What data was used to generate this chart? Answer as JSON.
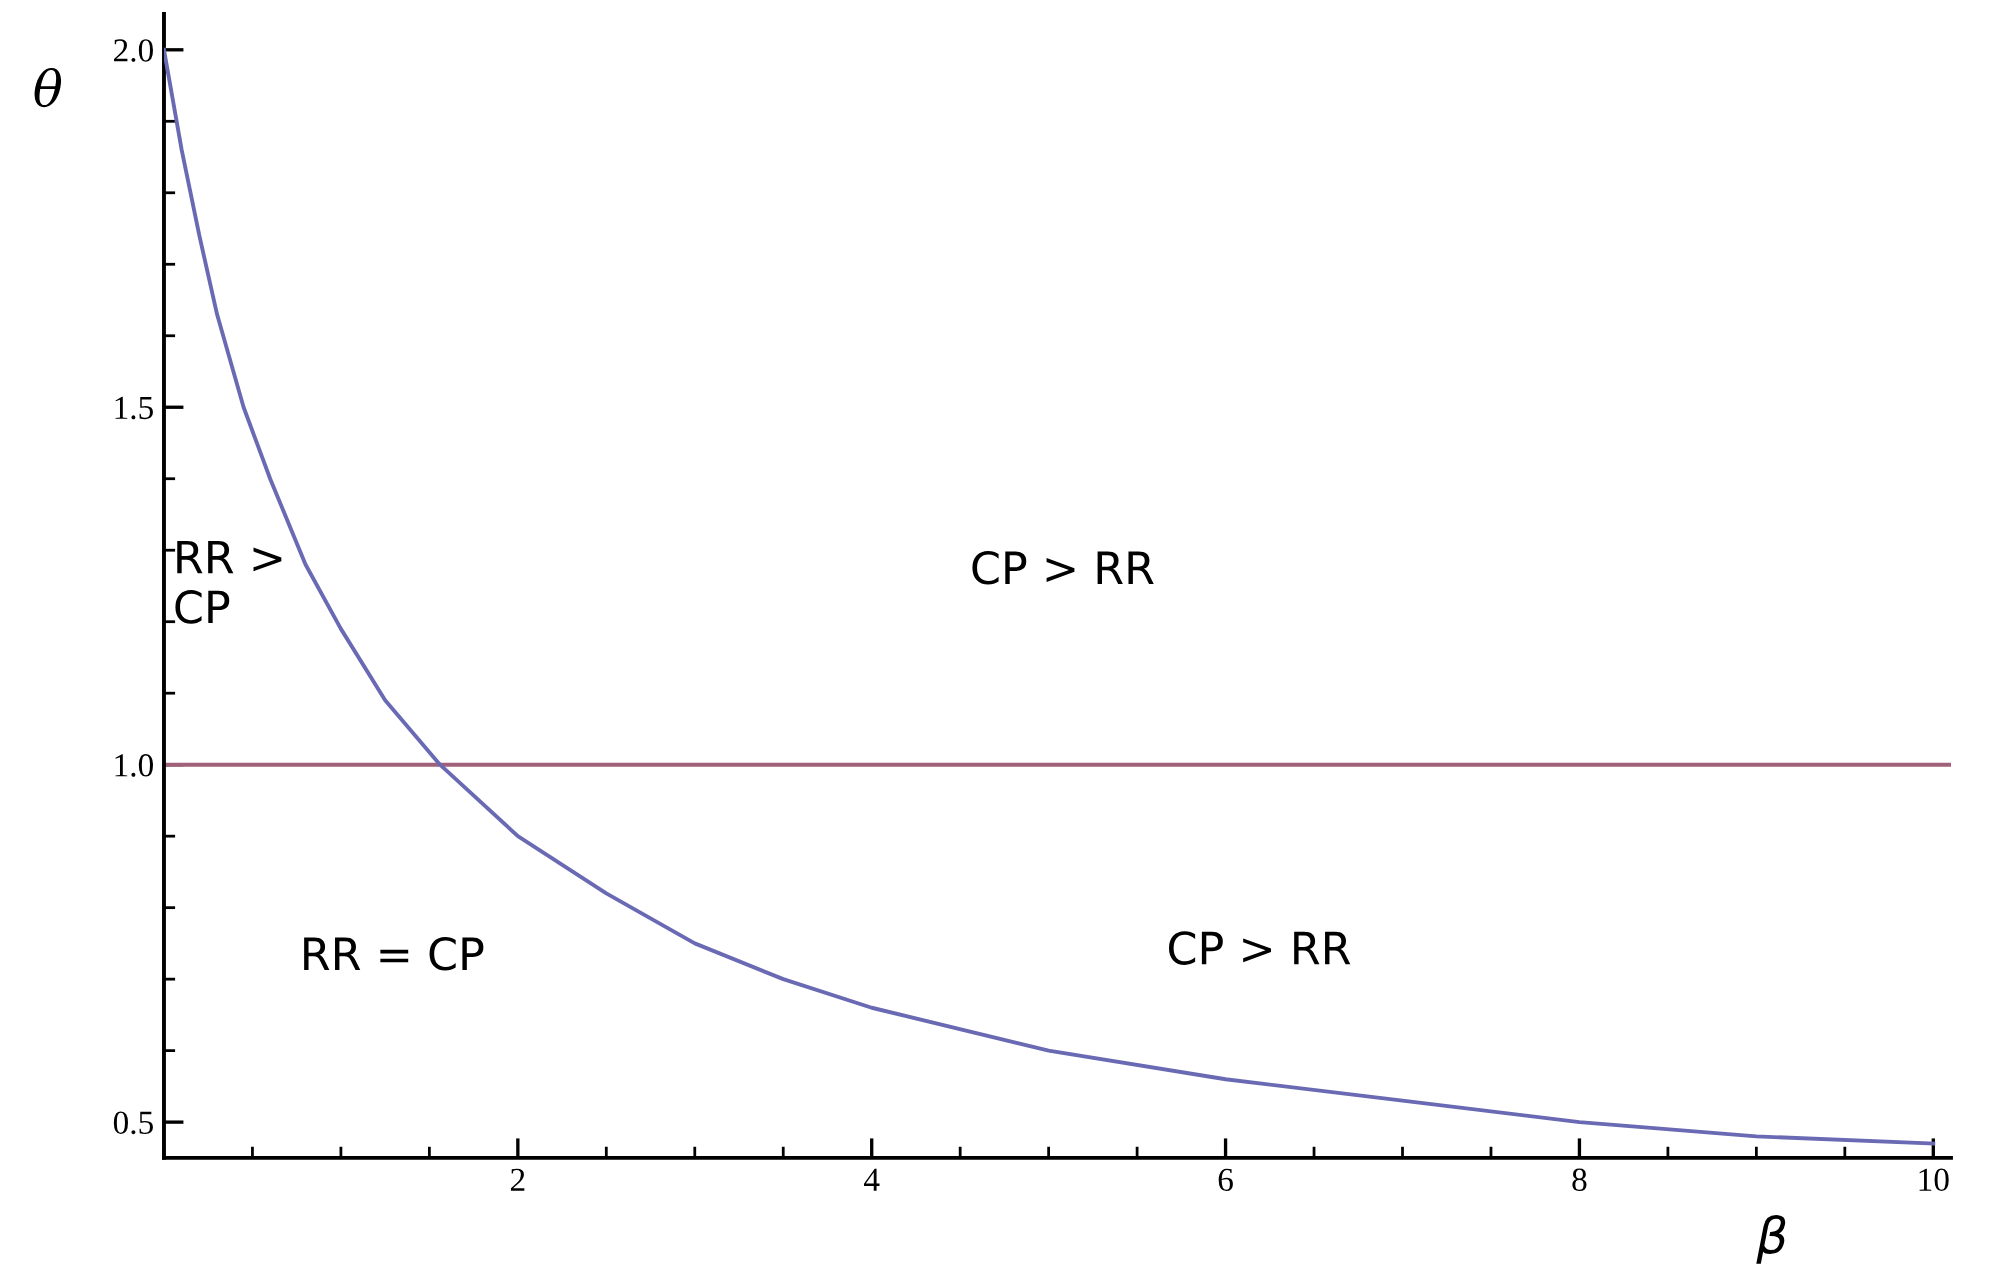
{
  "chart_data": {
    "type": "line",
    "xlabel": "β",
    "ylabel": "θ",
    "x": [
      0,
      0.1,
      0.2,
      0.3,
      0.45,
      0.6,
      0.8,
      1,
      1.25,
      1.56,
      2,
      2.5,
      3,
      3.5,
      4,
      5,
      6,
      7,
      8,
      9,
      10
    ],
    "series": [
      {
        "color": "#6a6ab4",
        "values": [
          2.0,
          1.86,
          1.74,
          1.63,
          1.5,
          1.4,
          1.28,
          1.19,
          1.09,
          1.0,
          0.9,
          0.82,
          0.75,
          0.7,
          0.66,
          0.6,
          0.56,
          0.53,
          0.5,
          0.48,
          0.47
        ]
      }
    ],
    "ref_lines": [
      {
        "axis": "y",
        "value": 1.0,
        "color": "#a0607a"
      }
    ],
    "annotations": [
      "RR >\nCP",
      "CP > RR",
      "RR = CP",
      "CP > RR"
    ],
    "xlim": [
      0,
      10.1
    ],
    "ylim": [
      0.45,
      2.05
    ],
    "xticks": [
      2,
      4,
      6,
      8,
      10
    ],
    "yticks": [
      0.5,
      {
        "value": 1.0,
        "label": "1.0"
      },
      1.5,
      {
        "value": 2.0,
        "label": "2.0"
      }
    ],
    "grid": false,
    "legend": false,
    "marker": "none",
    "line_style": "solid"
  }
}
